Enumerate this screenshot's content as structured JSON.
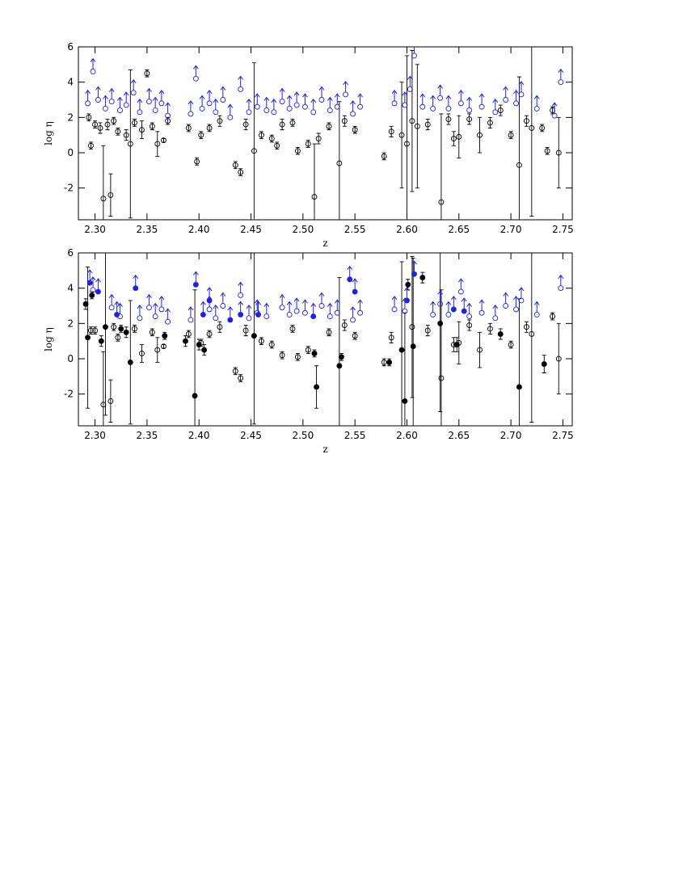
{
  "chart_data": [
    {
      "type": "scatter",
      "xlabel": "z",
      "ylabel": "log η",
      "xlim": [
        2.284,
        2.759
      ],
      "ylim": [
        -3.8,
        6
      ],
      "xticks": [
        {
          "value": 2.3,
          "label": "2.30"
        },
        {
          "value": 2.35,
          "label": "2.35"
        },
        {
          "value": 2.4,
          "label": "2.40"
        },
        {
          "value": 2.45,
          "label": "2.45"
        },
        {
          "value": 2.5,
          "label": "2.50"
        },
        {
          "value": 2.55,
          "label": "2.55"
        },
        {
          "value": 2.6,
          "label": "2.60"
        },
        {
          "value": 2.65,
          "label": "2.65"
        },
        {
          "value": 2.7,
          "label": "2.70"
        },
        {
          "value": 2.75,
          "label": "2.75"
        }
      ],
      "yticks": [
        -2,
        0,
        2,
        4,
        6
      ],
      "series": [
        {
          "color": "#000000",
          "marker": "open",
          "x": [
            2.294,
            2.296,
            2.3,
            2.305,
            2.308,
            2.312,
            2.315,
            2.318,
            2.322,
            2.33,
            2.334,
            2.338,
            2.345,
            2.35,
            2.355,
            2.36,
            2.366,
            2.37,
            2.39,
            2.398,
            2.402,
            2.41,
            2.42,
            2.435,
            2.44,
            2.445,
            2.453,
            2.46,
            2.47,
            2.475,
            2.48,
            2.49,
            2.495,
            2.505,
            2.511,
            2.515,
            2.525,
            2.535,
            2.54,
            2.55,
            2.578,
            2.585,
            2.595,
            2.6,
            2.605,
            2.61,
            2.62,
            2.633,
            2.64,
            2.645,
            2.65,
            2.66,
            2.67,
            2.68,
            2.69,
            2.7,
            2.708,
            2.715,
            2.72,
            2.73,
            2.735,
            2.74,
            2.746
          ],
          "values": [
            2.0,
            0.4,
            1.6,
            1.4,
            -2.6,
            1.6,
            -2.4,
            1.8,
            1.2,
            1.0,
            0.5,
            1.7,
            1.3,
            4.5,
            1.5,
            0.5,
            0.7,
            1.8,
            1.4,
            -0.5,
            1.0,
            1.4,
            1.8,
            -0.7,
            -1.1,
            1.6,
            0.1,
            1.0,
            0.8,
            0.4,
            1.6,
            1.7,
            0.1,
            0.5,
            -2.5,
            0.8,
            1.5,
            -0.6,
            1.8,
            1.3,
            -0.2,
            1.2,
            1.0,
            0.5,
            1.8,
            1.5,
            1.6,
            -2.8,
            1.9,
            0.8,
            0.9,
            1.9,
            1.0,
            1.7,
            2.4,
            1.0,
            -0.7,
            1.8,
            1.4,
            1.4,
            0.1,
            2.4,
            0.0
          ],
          "errors": [
            0.2,
            0.2,
            0.2,
            0.3,
            3.0,
            0.3,
            1.2,
            0.2,
            0.2,
            0.3,
            4.2,
            0.2,
            0.5,
            0.2,
            0.2,
            0.7,
            0.1,
            0.2,
            0.2,
            0.2,
            0.2,
            0.2,
            0.3,
            0.2,
            0.2,
            0.3,
            5.0,
            0.2,
            0.2,
            0.2,
            0.3,
            0.2,
            0.2,
            0.2,
            3.0,
            0.3,
            0.2,
            3.5,
            0.3,
            0.2,
            0.2,
            0.3,
            3.0,
            5.0,
            4.0,
            3.5,
            0.3,
            5.0,
            0.3,
            0.4,
            1.2,
            0.3,
            1.0,
            0.3,
            0.3,
            0.2,
            5.0,
            0.3,
            5.0,
            0.2,
            0.2,
            0.2,
            2.0
          ]
        },
        {
          "color": "#2222dd",
          "marker": "open",
          "limit": "lower",
          "x": [
            2.293,
            2.298,
            2.303,
            2.31,
            2.316,
            2.324,
            2.33,
            2.337,
            2.343,
            2.352,
            2.358,
            2.364,
            2.37,
            2.392,
            2.397,
            2.403,
            2.41,
            2.416,
            2.423,
            2.43,
            2.44,
            2.448,
            2.456,
            2.465,
            2.472,
            2.48,
            2.487,
            2.494,
            2.502,
            2.51,
            2.518,
            2.526,
            2.533,
            2.541,
            2.548,
            2.555,
            2.588,
            2.598,
            2.603,
            2.607,
            2.615,
            2.625,
            2.632,
            2.64,
            2.652,
            2.66,
            2.672,
            2.685,
            2.695,
            2.705,
            2.71,
            2.725,
            2.742,
            2.748
          ],
          "values": [
            2.8,
            4.6,
            3.0,
            2.5,
            2.9,
            2.4,
            2.7,
            3.4,
            2.3,
            2.9,
            2.4,
            2.8,
            2.1,
            2.2,
            4.2,
            2.5,
            2.8,
            2.3,
            3.0,
            2.0,
            3.6,
            2.3,
            2.6,
            2.4,
            2.3,
            2.9,
            2.5,
            2.7,
            2.6,
            2.3,
            3.0,
            2.4,
            2.6,
            3.3,
            2.2,
            2.6,
            2.8,
            2.7,
            3.6,
            5.5,
            2.6,
            2.5,
            3.1,
            2.5,
            2.8,
            2.4,
            2.6,
            2.3,
            3.0,
            2.8,
            3.3,
            2.5,
            2.1,
            4.0
          ]
        }
      ]
    },
    {
      "type": "scatter",
      "xlabel": "z",
      "ylabel": "log η",
      "xlim": [
        2.284,
        2.759
      ],
      "ylim": [
        -3.8,
        6
      ],
      "xticks": [
        {
          "value": 2.3,
          "label": "2.30"
        },
        {
          "value": 2.35,
          "label": "2.35"
        },
        {
          "value": 2.4,
          "label": "2.40"
        },
        {
          "value": 2.45,
          "label": "2.45"
        },
        {
          "value": 2.5,
          "label": "2.50"
        },
        {
          "value": 2.55,
          "label": "2.55"
        },
        {
          "value": 2.6,
          "label": "2.60"
        },
        {
          "value": 2.65,
          "label": "2.65"
        },
        {
          "value": 2.7,
          "label": "2.70"
        },
        {
          "value": 2.75,
          "label": "2.75"
        }
      ],
      "yticks": [
        -2,
        0,
        2,
        4,
        6
      ],
      "series": [
        {
          "color": "#000000",
          "marker": "open",
          "x": [
            2.296,
            2.3,
            2.308,
            2.315,
            2.318,
            2.322,
            2.338,
            2.345,
            2.355,
            2.36,
            2.366,
            2.39,
            2.402,
            2.41,
            2.42,
            2.435,
            2.44,
            2.445,
            2.46,
            2.47,
            2.48,
            2.49,
            2.495,
            2.505,
            2.525,
            2.54,
            2.55,
            2.578,
            2.585,
            2.605,
            2.62,
            2.633,
            2.645,
            2.65,
            2.66,
            2.67,
            2.68,
            2.7,
            2.715,
            2.72,
            2.74,
            2.746
          ],
          "values": [
            1.6,
            1.6,
            -2.6,
            -2.4,
            1.8,
            1.2,
            1.7,
            0.3,
            1.5,
            0.5,
            0.7,
            1.4,
            0.9,
            1.4,
            1.8,
            -0.7,
            -1.1,
            1.6,
            1.0,
            0.8,
            0.2,
            1.7,
            0.1,
            0.5,
            1.5,
            1.9,
            1.3,
            -0.2,
            1.2,
            1.8,
            1.6,
            -1.1,
            0.8,
            0.9,
            1.9,
            0.5,
            1.7,
            0.8,
            1.8,
            1.4,
            2.4,
            0.0
          ],
          "errors": [
            0.2,
            0.2,
            3.0,
            1.2,
            0.2,
            0.2,
            0.2,
            0.5,
            0.2,
            0.7,
            0.1,
            0.2,
            0.2,
            0.2,
            0.3,
            0.2,
            0.2,
            0.3,
            0.2,
            0.2,
            0.2,
            0.2,
            0.2,
            0.2,
            0.2,
            0.3,
            0.2,
            0.2,
            0.3,
            4.0,
            0.3,
            5.0,
            0.4,
            1.2,
            0.3,
            1.0,
            0.3,
            0.2,
            0.3,
            5.0,
            0.2,
            2.0
          ]
        },
        {
          "color": "#000000",
          "marker": "filled",
          "x": [
            2.291,
            2.293,
            2.297,
            2.306,
            2.31,
            2.325,
            2.33,
            2.334,
            2.367,
            2.387,
            2.396,
            2.4,
            2.405,
            2.453,
            2.511,
            2.513,
            2.535,
            2.537,
            2.583,
            2.595,
            2.598,
            2.601,
            2.606,
            2.615,
            2.632,
            2.648,
            2.69,
            2.708,
            2.732
          ],
          "values": [
            3.1,
            1.2,
            3.6,
            1.0,
            1.8,
            1.7,
            1.5,
            -0.2,
            1.3,
            1.0,
            -2.1,
            0.8,
            0.5,
            1.3,
            0.3,
            -1.6,
            -0.4,
            0.1,
            -0.2,
            0.5,
            -2.4,
            4.2,
            0.7,
            4.6,
            2.0,
            0.8,
            1.4,
            -1.6,
            -0.3
          ],
          "errors": [
            0.3,
            4.0,
            0.2,
            0.3,
            5.0,
            0.2,
            0.3,
            3.5,
            0.2,
            0.3,
            6.0,
            0.3,
            0.3,
            5.0,
            0.2,
            1.2,
            5.0,
            0.2,
            0.2,
            5.0,
            5.0,
            0.3,
            5.0,
            0.3,
            5.0,
            0.4,
            0.3,
            5.0,
            0.5
          ]
        },
        {
          "color": "#2222dd",
          "marker": "open",
          "limit": "lower",
          "x": [
            2.298,
            2.316,
            2.324,
            2.343,
            2.352,
            2.358,
            2.364,
            2.37,
            2.392,
            2.41,
            2.416,
            2.423,
            2.44,
            2.448,
            2.456,
            2.465,
            2.48,
            2.487,
            2.494,
            2.502,
            2.518,
            2.526,
            2.533,
            2.548,
            2.555,
            2.588,
            2.598,
            2.625,
            2.632,
            2.64,
            2.652,
            2.66,
            2.672,
            2.685,
            2.695,
            2.705,
            2.71,
            2.725,
            2.748
          ],
          "values": [
            3.9,
            2.9,
            2.4,
            2.3,
            2.9,
            2.4,
            2.8,
            2.1,
            2.2,
            2.8,
            2.3,
            3.0,
            3.6,
            2.3,
            2.6,
            2.4,
            2.9,
            2.5,
            2.7,
            2.6,
            3.0,
            2.4,
            2.6,
            2.2,
            2.6,
            2.8,
            2.7,
            2.5,
            3.1,
            2.5,
            3.8,
            2.4,
            2.6,
            2.3,
            3.0,
            2.8,
            3.3,
            2.5,
            4.0
          ]
        },
        {
          "color": "#2222dd",
          "marker": "filled",
          "limit": "lower",
          "x": [
            2.295,
            2.303,
            2.321,
            2.339,
            2.397,
            2.404,
            2.41,
            2.43,
            2.44,
            2.457,
            2.51,
            2.545,
            2.55,
            2.6,
            2.607,
            2.645,
            2.655
          ],
          "values": [
            4.3,
            3.8,
            2.5,
            4.0,
            4.2,
            2.5,
            3.3,
            2.2,
            2.5,
            2.5,
            2.4,
            4.5,
            3.8,
            3.3,
            4.8,
            2.8,
            2.7
          ]
        }
      ]
    }
  ]
}
